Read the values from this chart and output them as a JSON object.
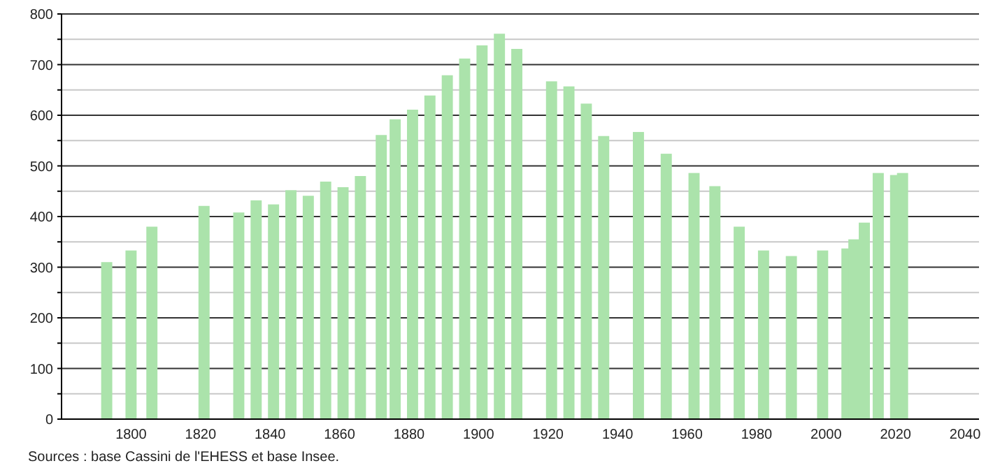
{
  "chart_data": {
    "type": "bar",
    "x": [
      1793,
      1800,
      1806,
      1821,
      1831,
      1836,
      1841,
      1846,
      1851,
      1856,
      1861,
      1866,
      1872,
      1876,
      1881,
      1886,
      1891,
      1896,
      1901,
      1906,
      1911,
      1921,
      1926,
      1931,
      1936,
      1946,
      1954,
      1962,
      1968,
      1975,
      1982,
      1990,
      1999,
      2006,
      2008,
      2011,
      2015,
      2020,
      2022
    ],
    "values": [
      310,
      333,
      380,
      421,
      408,
      432,
      424,
      452,
      441,
      469,
      458,
      480,
      561,
      592,
      611,
      639,
      679,
      712,
      738,
      761,
      731,
      667,
      657,
      623,
      559,
      567,
      524,
      486,
      460,
      380,
      333,
      322,
      333,
      337,
      355,
      388,
      486,
      482,
      486
    ],
    "color": "#abe3ab",
    "xlim": [
      1780,
      2044
    ],
    "xticks": [
      1800,
      1820,
      1840,
      1860,
      1880,
      1900,
      1920,
      1940,
      1960,
      1980,
      2000,
      2020,
      2040
    ],
    "ylim": [
      0,
      800
    ],
    "yticks": [
      0,
      {
        "value": 50,
        "label": null
      },
      100,
      {
        "value": 150,
        "label": null
      },
      200,
      {
        "value": 250,
        "label": null
      },
      300,
      {
        "value": 350,
        "label": null
      },
      400,
      {
        "value": 450,
        "label": null
      },
      500,
      {
        "value": 550,
        "label": null
      },
      600,
      {
        "value": 650,
        "label": null
      },
      700,
      {
        "value": 750,
        "label": null
      },
      800
    ],
    "grid": "y",
    "annotations": [
      "Sources : base Cassini de l'EHESS et base Insee."
    ]
  }
}
